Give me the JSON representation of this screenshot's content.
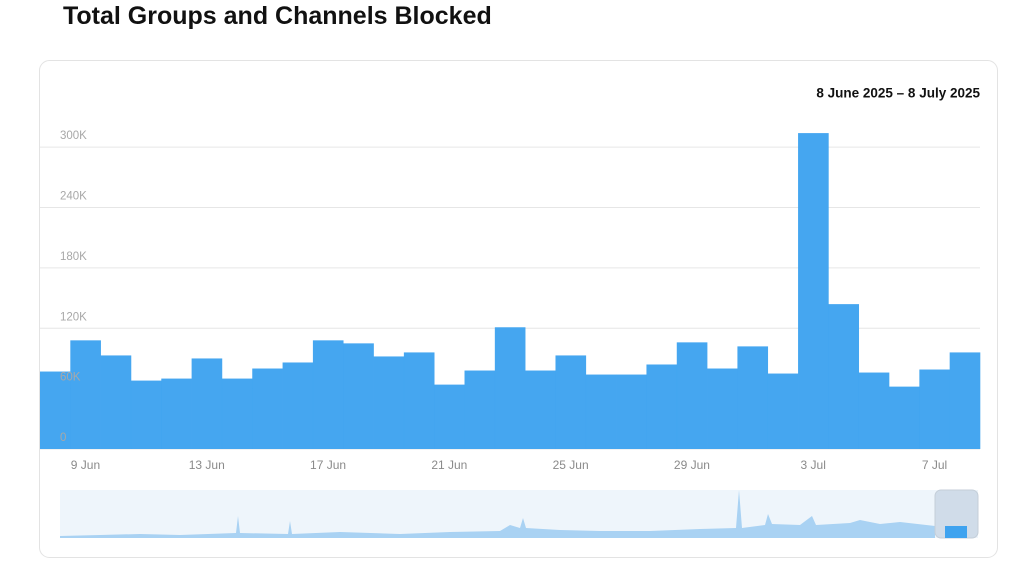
{
  "title": "Total Groups and Channels Blocked",
  "chart_data": {
    "type": "bar",
    "date_range": "8 June 2025 – 8 July 2025",
    "categories": [
      null,
      "9 Jun",
      null,
      null,
      null,
      "13 Jun",
      null,
      null,
      null,
      "17 Jun",
      null,
      null,
      null,
      "21 Jun",
      null,
      null,
      null,
      "25 Jun",
      null,
      null,
      null,
      "29 Jun",
      null,
      null,
      null,
      "3 Jul",
      null,
      null,
      null,
      "7 Jul",
      null
    ],
    "values": [
      77000,
      108000,
      93000,
      68000,
      70000,
      90000,
      70000,
      80000,
      86000,
      108000,
      105000,
      92000,
      96000,
      64000,
      78000,
      121000,
      78000,
      93000,
      74000,
      74000,
      84000,
      106000,
      80000,
      102000,
      75000,
      314000,
      144000,
      76000,
      62000,
      79000,
      96000
    ],
    "color": "#3fa3ef",
    "ylim": [
      0,
      330000
    ],
    "yticks": [
      {
        "value": 0,
        "label": "0"
      },
      {
        "value": 60000,
        "label": "60K"
      },
      {
        "value": 120000,
        "label": "120K"
      },
      {
        "value": 180000,
        "label": "180K"
      },
      {
        "value": 240000,
        "label": "240K"
      },
      {
        "value": 300000,
        "label": "300K"
      }
    ],
    "grid": true
  }
}
